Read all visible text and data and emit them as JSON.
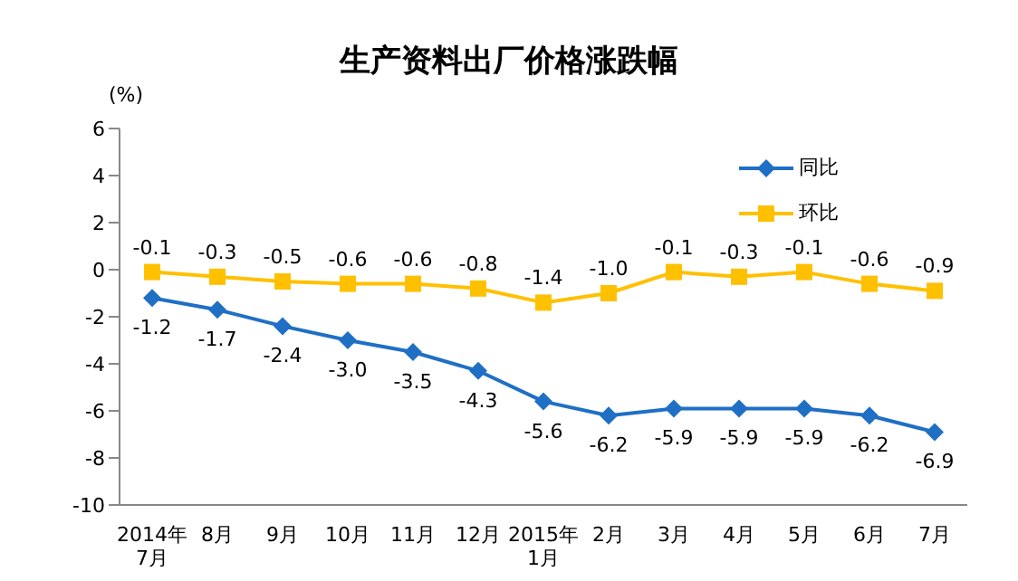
{
  "chart_data": {
    "type": "line",
    "title": "生产资料出厂价格涨跌幅",
    "ylabel": "(%)",
    "categories": [
      "2014年\n7月",
      "8月",
      "9月",
      "10月",
      "11月",
      "12月",
      "2015年\n1月",
      "2月",
      "3月",
      "4月",
      "5月",
      "6月",
      "7月"
    ],
    "series": [
      {
        "name": "同比",
        "color": "#1f6fc5",
        "marker": "diamond",
        "values": [
          -1.2,
          -1.7,
          -2.4,
          -3.0,
          -3.5,
          -4.3,
          -5.6,
          -6.2,
          -5.9,
          -5.9,
          -5.9,
          -6.2,
          -6.9
        ],
        "value_labels": [
          "-1.2",
          "-1.7",
          "-2.4",
          "-3.0",
          "-3.5",
          "-4.3",
          "-5.6",
          "-6.2",
          "-5.9",
          "-5.9",
          "-5.9",
          "-6.2",
          "-6.9"
        ]
      },
      {
        "name": "环比",
        "color": "#ffc000",
        "marker": "square",
        "values": [
          -0.1,
          -0.3,
          -0.5,
          -0.6,
          -0.6,
          -0.8,
          -1.4,
          -1.0,
          -0.1,
          -0.3,
          -0.1,
          -0.6,
          -0.9
        ],
        "value_labels": [
          "-0.1",
          "-0.3",
          "-0.5",
          "-0.6",
          "-0.6",
          "-0.8",
          "-1.4",
          "-1.0",
          "-0.1",
          "-0.3",
          "-0.1",
          "-0.6",
          "-0.9"
        ]
      }
    ],
    "ylim": [
      -10,
      6
    ],
    "yticks": [
      -10,
      -8,
      -6,
      -4,
      -2,
      0,
      2,
      4,
      6
    ],
    "grid": false,
    "legend": "top right"
  }
}
